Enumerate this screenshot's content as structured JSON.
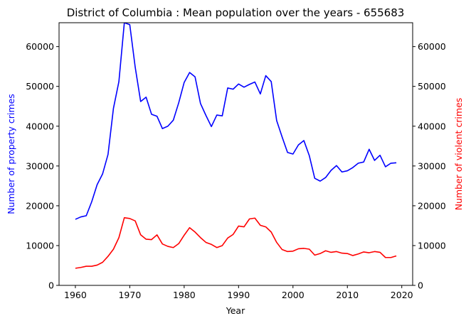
{
  "chart_data": {
    "type": "line",
    "title": "District of Columbia : Mean population over the years - 655683",
    "xlabel": "Year",
    "ylabel_left": "Number of property crimes",
    "ylabel_right": "Number of violent crimes",
    "xlim": [
      1957,
      2022
    ],
    "ylim": [
      0,
      66000
    ],
    "x_ticks": [
      1960,
      1970,
      1980,
      1990,
      2000,
      2010,
      2020
    ],
    "y_ticks": [
      0,
      10000,
      20000,
      30000,
      40000,
      50000,
      60000
    ],
    "grid": false,
    "colors": {
      "property": "#0000ff",
      "violent": "#ff0000"
    },
    "x": [
      1960,
      1961,
      1962,
      1963,
      1964,
      1965,
      1966,
      1967,
      1968,
      1969,
      1970,
      1971,
      1972,
      1973,
      1974,
      1975,
      1976,
      1977,
      1978,
      1979,
      1980,
      1981,
      1982,
      1983,
      1984,
      1985,
      1986,
      1987,
      1988,
      1989,
      1990,
      1991,
      1992,
      1993,
      1994,
      1995,
      1996,
      1997,
      1998,
      1999,
      2000,
      2001,
      2002,
      2003,
      2004,
      2005,
      2006,
      2007,
      2008,
      2009,
      2010,
      2011,
      2012,
      2013,
      2014,
      2015,
      2016,
      2017,
      2018,
      2019
    ],
    "series": [
      {
        "axis": "left",
        "values": [
          16600,
          17200,
          17500,
          21000,
          25300,
          28000,
          32900,
          44500,
          51200,
          66000,
          65500,
          54800,
          46200,
          47300,
          43000,
          42500,
          39400,
          40000,
          41500,
          45900,
          51000,
          53500,
          52400,
          45700,
          42700,
          39900,
          42800,
          42600,
          49600,
          49300,
          50600,
          49800,
          50500,
          51100,
          48100,
          52700,
          51200,
          41400,
          37300,
          33400,
          33000,
          35300,
          36400,
          32600,
          26900,
          26200,
          27100,
          28900,
          30100,
          28500,
          28800,
          29600,
          30700,
          31000,
          34200,
          31400,
          32700,
          29800,
          30700,
          30800
        ]
      },
      {
        "axis": "right",
        "values": [
          4300,
          4500,
          4800,
          4800,
          5100,
          5800,
          7300,
          9100,
          12000,
          17000,
          16800,
          16200,
          12700,
          11600,
          11500,
          12700,
          10400,
          9800,
          9500,
          10500,
          12600,
          14500,
          13400,
          12000,
          10800,
          10300,
          9500,
          10000,
          11900,
          12800,
          14900,
          14700,
          16700,
          16900,
          15100,
          14700,
          13400,
          10800,
          9000,
          8500,
          8600,
          9200,
          9300,
          9100,
          7600,
          8000,
          8700,
          8300,
          8500,
          8100,
          8000,
          7500,
          7900,
          8400,
          8200,
          8500,
          8300,
          7000,
          7000,
          7400
        ]
      }
    ]
  }
}
